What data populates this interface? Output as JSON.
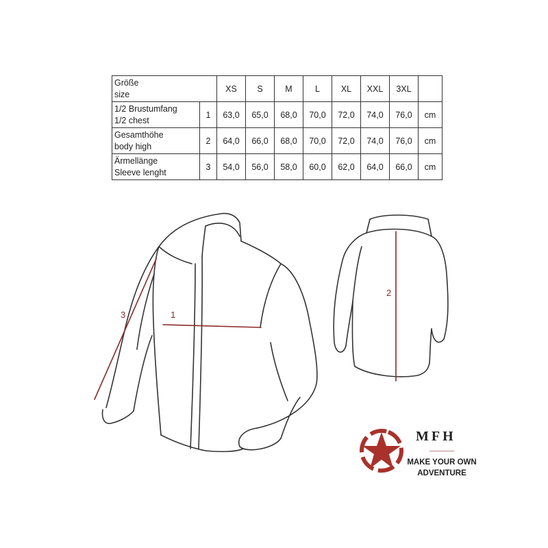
{
  "size_table": {
    "header": {
      "label_de": "Größe",
      "label_en": "size",
      "sizes": [
        "XS",
        "S",
        "M",
        "L",
        "XL",
        "XXL",
        "3XL"
      ]
    },
    "rows": [
      {
        "label_de": "1/2 Brustumfang",
        "label_en": "1/2 chest",
        "num": "1",
        "values": [
          "63,0",
          "65,0",
          "68,0",
          "70,0",
          "72,0",
          "74,0",
          "76,0"
        ],
        "unit": "cm"
      },
      {
        "label_de": "Gesamthöhe",
        "label_en": "body high",
        "num": "2",
        "values": [
          "64,0",
          "66,0",
          "68,0",
          "70,0",
          "72,0",
          "74,0",
          "76,0"
        ],
        "unit": "cm"
      },
      {
        "label_de": "Ärmellänge",
        "label_en": "Sleeve lenght",
        "num": "3",
        "values": [
          "54,0",
          "56,0",
          "58,0",
          "60,0",
          "62,0",
          "64,0",
          "66,0"
        ],
        "unit": "cm"
      }
    ]
  },
  "measure_labels": {
    "chest": "1",
    "body": "2",
    "sleeve": "3"
  },
  "logo": {
    "brand": "MFH",
    "tagline_1": "MAKE YOUR OWN",
    "tagline_2": "ADVENTURE",
    "color": "#a8322b"
  },
  "colors": {
    "measure_line": "#8b2a26",
    "outline": "#333333"
  }
}
